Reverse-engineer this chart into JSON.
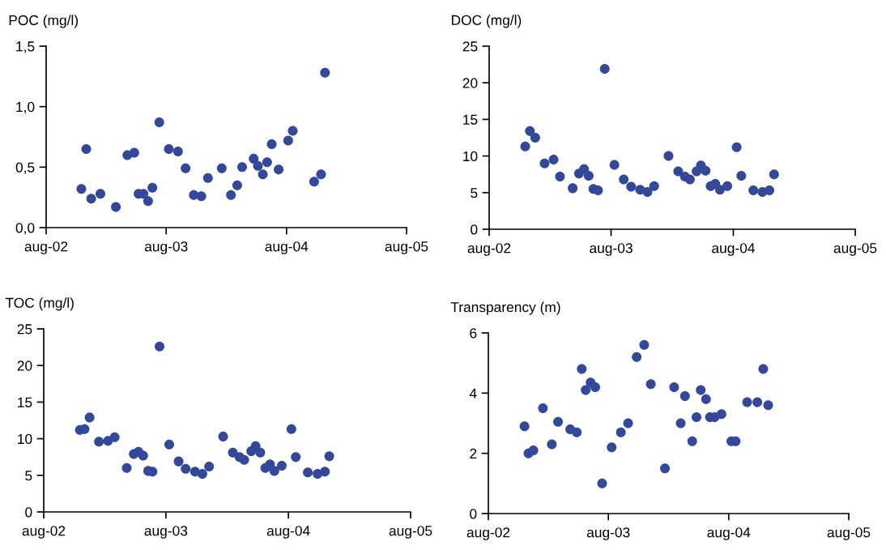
{
  "chart_data": [
    {
      "type": "scatter",
      "title": "POC (mg/l)",
      "color": "#34489a",
      "marker": "circle",
      "grid": false,
      "legend": false,
      "x": [
        "2002-11-16",
        "2002-12-01",
        "2002-12-16",
        "2003-01-13",
        "2003-03-01",
        "2003-04-05",
        "2003-04-26",
        "2003-05-09",
        "2003-05-24",
        "2003-06-07",
        "2003-06-20",
        "2003-07-11",
        "2003-08-09",
        "2003-09-06",
        "2003-09-29",
        "2003-10-24",
        "2003-11-16",
        "2003-12-06",
        "2004-01-17",
        "2004-02-14",
        "2004-03-04",
        "2004-03-19",
        "2004-04-23",
        "2004-05-06",
        "2004-05-21",
        "2004-06-03",
        "2004-06-17",
        "2004-07-08",
        "2004-08-06",
        "2004-08-20",
        "2004-10-24",
        "2004-11-14",
        "2004-11-26"
      ],
      "values": [
        0.32,
        0.65,
        0.24,
        0.28,
        0.17,
        0.6,
        0.62,
        0.28,
        0.28,
        0.22,
        0.33,
        0.87,
        0.65,
        0.63,
        0.49,
        0.27,
        0.26,
        0.41,
        0.49,
        0.27,
        0.35,
        0.5,
        0.57,
        0.51,
        0.44,
        0.54,
        0.69,
        0.48,
        0.72,
        0.8,
        0.38,
        0.44,
        1.28
      ],
      "xlim": [
        "2002-08-01",
        "2005-08-01"
      ],
      "xticks": [
        {
          "value": "2002-08-01",
          "label": "aug-02"
        },
        {
          "value": "2003-08-01",
          "label": "aug-03"
        },
        {
          "value": "2004-08-01",
          "label": "aug-04"
        },
        {
          "value": "2005-08-01",
          "label": "aug-05"
        }
      ],
      "ylim": [
        0,
        1.5
      ],
      "yticks": [
        {
          "value": 0,
          "label": "0,0"
        },
        {
          "value": 0.5,
          "label": "0,5"
        },
        {
          "value": 1.0,
          "label": "1,0"
        },
        {
          "value": 1.5,
          "label": "1,5"
        }
      ]
    },
    {
      "type": "scatter",
      "title": "DOC (mg/l)",
      "color": "#34489a",
      "marker": "circle",
      "grid": false,
      "legend": false,
      "x": [
        "2002-11-17",
        "2002-12-01",
        "2002-12-17",
        "2003-01-14",
        "2003-02-10",
        "2003-03-01",
        "2003-04-08",
        "2003-04-27",
        "2003-05-12",
        "2003-05-26",
        "2003-06-09",
        "2003-06-23",
        "2003-07-13",
        "2003-08-11",
        "2003-09-08",
        "2003-09-30",
        "2003-10-27",
        "2003-11-18",
        "2003-12-08",
        "2004-01-20",
        "2004-02-18",
        "2004-03-09",
        "2004-03-24",
        "2004-04-13",
        "2004-04-26",
        "2004-05-10",
        "2004-05-25",
        "2004-06-08",
        "2004-06-22",
        "2004-07-14",
        "2004-08-11",
        "2004-08-25",
        "2004-09-30",
        "2004-10-27",
        "2004-11-17",
        "2004-12-01"
      ],
      "values": [
        11.3,
        13.4,
        12.5,
        9.0,
        9.5,
        7.2,
        5.6,
        7.6,
        8.2,
        7.3,
        5.5,
        5.3,
        21.9,
        8.8,
        6.8,
        5.8,
        5.4,
        5.1,
        5.9,
        10.0,
        7.9,
        7.2,
        6.8,
        7.9,
        8.7,
        8.0,
        5.9,
        6.2,
        5.4,
        5.9,
        11.2,
        7.3,
        5.3,
        5.1,
        5.3,
        7.5
      ],
      "xlim": [
        "2002-08-01",
        "2005-08-01"
      ],
      "xticks": [
        {
          "value": "2002-08-01",
          "label": "aug-02"
        },
        {
          "value": "2003-08-01",
          "label": "aug-03"
        },
        {
          "value": "2004-08-01",
          "label": "aug-04"
        },
        {
          "value": "2005-08-01",
          "label": "aug-05"
        }
      ],
      "ylim": [
        0,
        25
      ],
      "yticks": [
        0,
        5,
        10,
        15,
        20,
        25
      ]
    },
    {
      "type": "scatter",
      "title": "TOC (mg/l)",
      "color": "#34489a",
      "marker": "circle",
      "grid": false,
      "legend": false,
      "x": [
        "2002-11-17",
        "2002-12-01",
        "2002-12-16",
        "2003-01-13",
        "2003-02-09",
        "2003-03-01",
        "2003-04-06",
        "2003-04-27",
        "2003-05-11",
        "2003-05-25",
        "2003-06-09",
        "2003-06-22",
        "2003-07-13",
        "2003-08-11",
        "2003-09-08",
        "2003-09-29",
        "2003-10-27",
        "2003-11-18",
        "2003-12-08",
        "2004-01-19",
        "2004-02-17",
        "2004-03-08",
        "2004-03-22",
        "2004-04-12",
        "2004-04-25",
        "2004-05-09",
        "2004-05-24",
        "2004-06-07",
        "2004-06-20",
        "2004-07-12",
        "2004-08-10",
        "2004-08-23",
        "2004-09-28",
        "2004-10-27",
        "2004-11-18",
        "2004-12-01"
      ],
      "values": [
        11.2,
        11.3,
        12.9,
        9.6,
        9.7,
        10.2,
        6.0,
        7.9,
        8.2,
        7.7,
        5.6,
        5.5,
        22.6,
        9.2,
        6.9,
        5.9,
        5.5,
        5.2,
        6.2,
        10.3,
        8.1,
        7.5,
        7.1,
        8.3,
        9.0,
        8.1,
        6.0,
        6.5,
        5.6,
        6.3,
        11.3,
        7.5,
        5.4,
        5.2,
        5.5,
        7.6
      ],
      "xlim": [
        "2002-08-01",
        "2005-08-01"
      ],
      "xticks": [
        {
          "value": "2002-08-01",
          "label": "aug-02"
        },
        {
          "value": "2003-08-01",
          "label": "aug-03"
        },
        {
          "value": "2004-08-01",
          "label": "aug-04"
        },
        {
          "value": "2005-08-01",
          "label": "aug-05"
        }
      ],
      "ylim": [
        0,
        25
      ],
      "yticks": [
        0,
        5,
        10,
        15,
        20,
        25
      ]
    },
    {
      "type": "scatter",
      "title": "Transparency (m)",
      "color": "#34489a",
      "marker": "circle",
      "grid": false,
      "legend": false,
      "x": [
        "2002-11-19",
        "2002-12-01",
        "2002-12-16",
        "2003-01-14",
        "2003-02-10",
        "2003-03-01",
        "2003-04-07",
        "2003-04-27",
        "2003-05-12",
        "2003-05-24",
        "2003-06-08",
        "2003-06-22",
        "2003-07-13",
        "2003-08-11",
        "2003-09-08",
        "2003-09-30",
        "2003-10-26",
        "2003-11-18",
        "2003-12-08",
        "2004-01-20",
        "2004-02-17",
        "2004-03-08",
        "2004-03-21",
        "2004-04-12",
        "2004-04-25",
        "2004-05-08",
        "2004-05-24",
        "2004-06-05",
        "2004-06-19",
        "2004-07-10",
        "2004-08-09",
        "2004-08-22",
        "2004-09-26",
        "2004-10-27",
        "2004-11-14",
        "2004-11-29"
      ],
      "values": [
        2.9,
        2.0,
        2.1,
        3.5,
        2.3,
        3.05,
        2.8,
        2.7,
        4.8,
        4.1,
        4.35,
        4.2,
        1.0,
        2.2,
        2.7,
        3.0,
        5.2,
        5.6,
        4.3,
        1.5,
        4.2,
        3.0,
        3.9,
        2.4,
        3.2,
        4.1,
        3.8,
        3.2,
        3.2,
        3.3,
        2.4,
        2.4,
        3.7,
        3.7,
        4.8,
        3.6
      ],
      "xlim": [
        "2002-08-01",
        "2005-08-01"
      ],
      "xticks": [
        {
          "value": "2002-08-01",
          "label": "aug-02"
        },
        {
          "value": "2003-08-01",
          "label": "aug-03"
        },
        {
          "value": "2004-08-01",
          "label": "aug-04"
        },
        {
          "value": "2005-08-01",
          "label": "aug-05"
        }
      ],
      "ylim": [
        0,
        6
      ],
      "yticks": [
        0,
        2,
        4,
        6
      ]
    }
  ]
}
